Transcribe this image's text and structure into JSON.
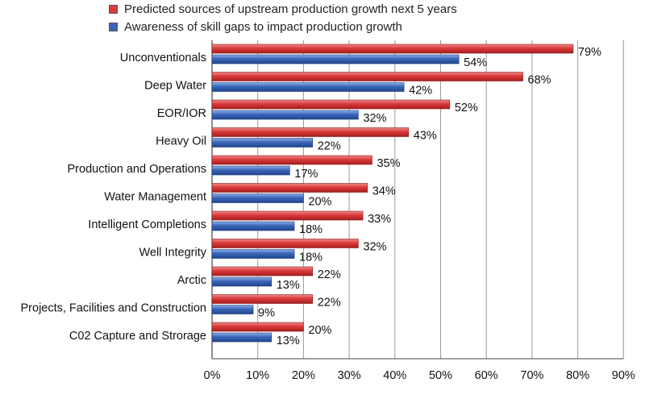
{
  "chart_data": {
    "type": "bar",
    "orientation": "horizontal",
    "categories": [
      "Unconventionals",
      "Deep Water",
      "EOR/IOR",
      "Heavy Oil",
      "Production and Operations",
      "Water Management",
      "Intelligent Completions",
      "Well Integrity",
      "Arctic",
      "Projects, Facilities and Construction",
      "C02 Capture and Strorage"
    ],
    "series": [
      {
        "name": "Predicted sources of upstream production growth next 5 years",
        "color": "#d93a3a",
        "values": [
          79,
          68,
          52,
          43,
          35,
          34,
          33,
          32,
          22,
          22,
          20
        ],
        "labels": [
          "79%",
          "68%",
          "52%",
          "43%",
          "35%",
          "34%",
          "33%",
          "32%",
          "22%",
          "22%",
          "20%"
        ]
      },
      {
        "name": "Awareness of skill gaps to impact production growth",
        "color": "#3a66b8",
        "values": [
          54,
          42,
          32,
          22,
          17,
          20,
          18,
          18,
          13,
          9,
          13
        ],
        "labels": [
          "54%",
          "42%",
          "32%",
          "22%",
          "17%",
          "20%",
          "18%",
          "18%",
          "13%",
          "9%",
          "13%"
        ]
      }
    ],
    "xlim": [
      0,
      90
    ],
    "ticks": [
      0,
      10,
      20,
      30,
      40,
      50,
      60,
      70,
      80,
      90
    ],
    "tick_labels": [
      "0%",
      "10%",
      "20%",
      "30%",
      "40%",
      "50%",
      "60%",
      "70%",
      "80%",
      "90%"
    ],
    "grid": true,
    "legend_position": "top"
  }
}
